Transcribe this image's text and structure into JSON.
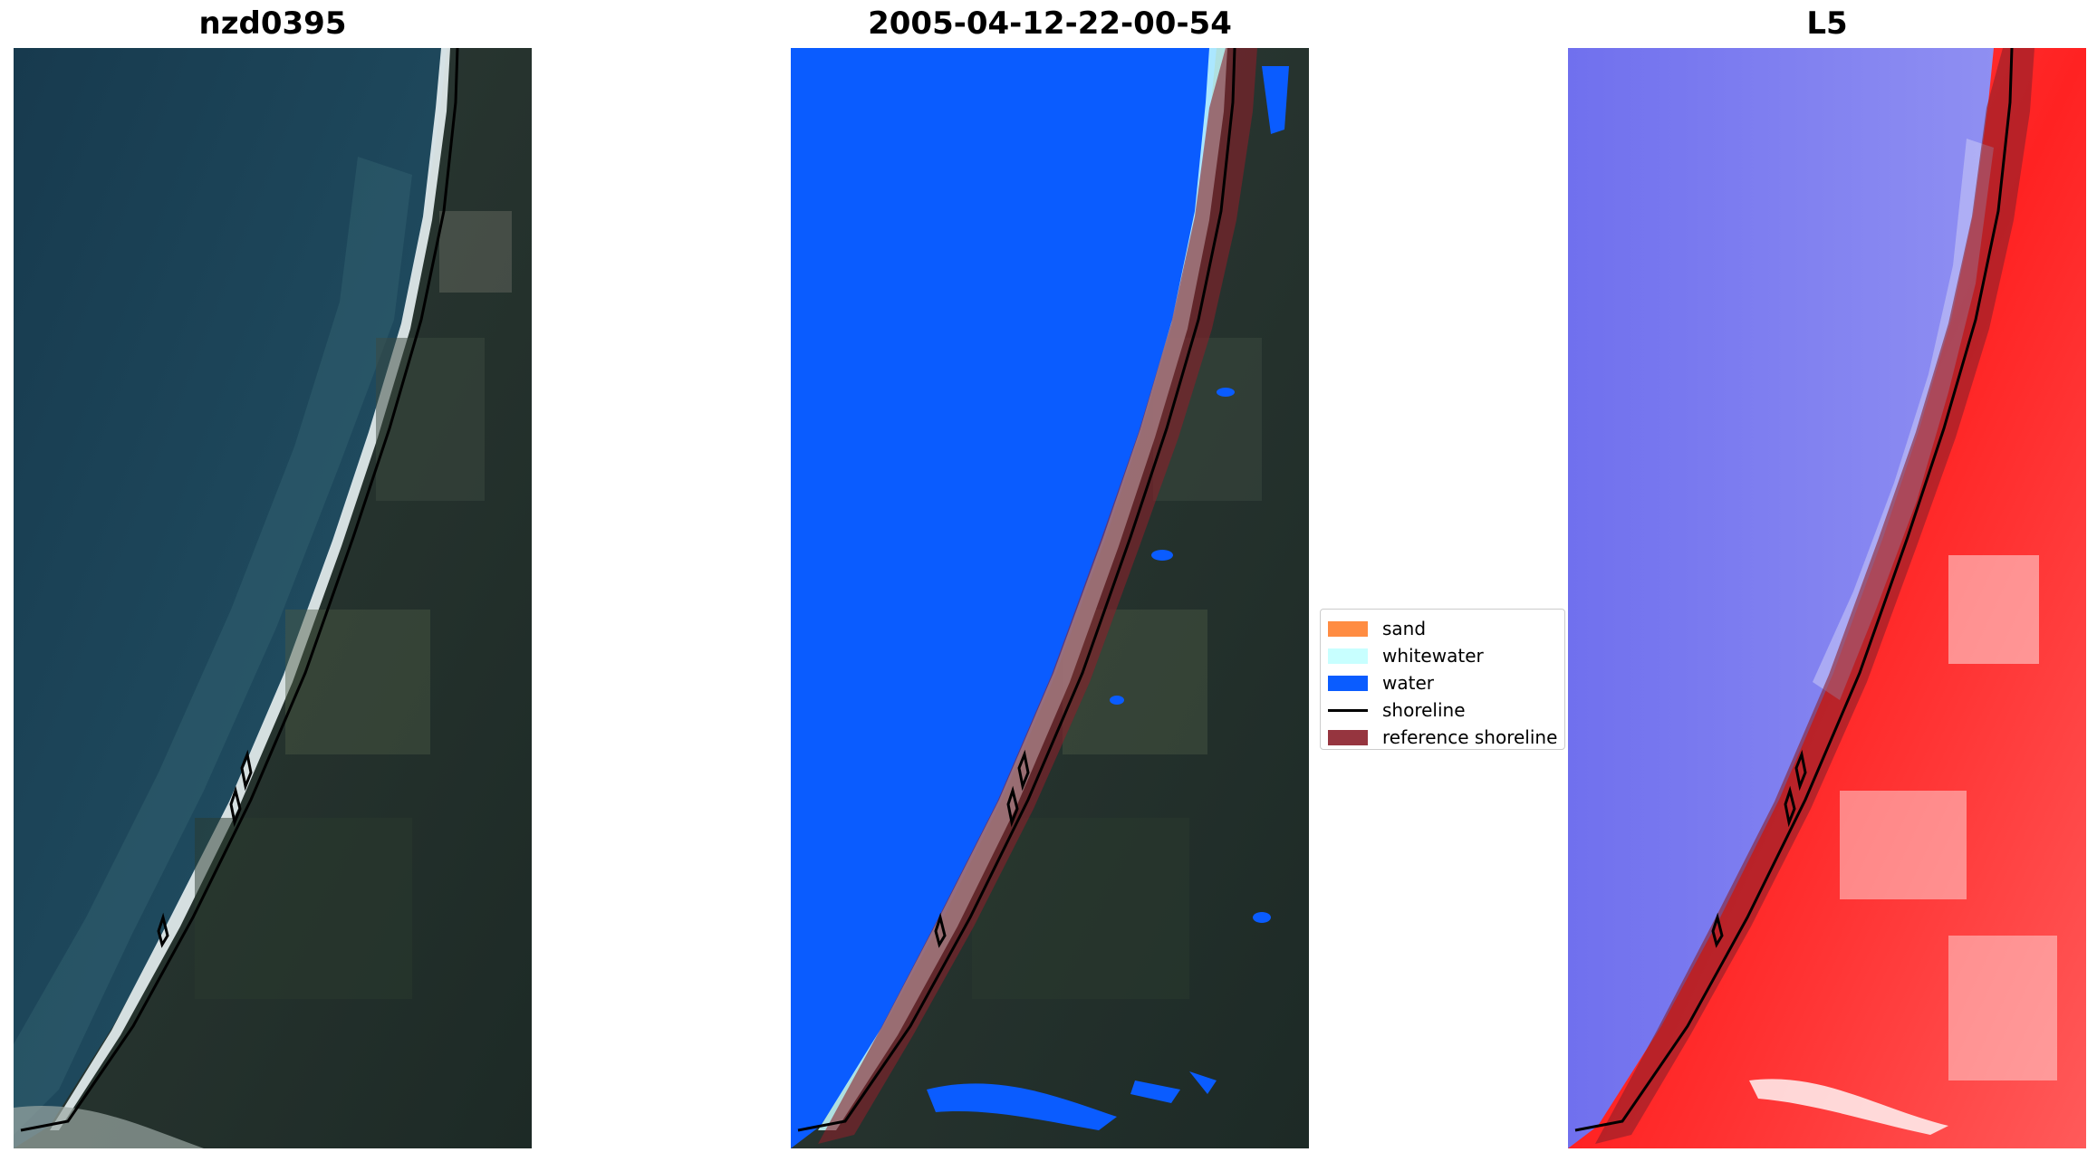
{
  "panels": [
    {
      "title": "nzd0395"
    },
    {
      "title": "2005-04-12-22-00-54"
    },
    {
      "title": "L5"
    }
  ],
  "legend": {
    "items": [
      {
        "label": "sand",
        "color": "#ff8c42"
      },
      {
        "label": "whitewater",
        "color": "#c8ffff"
      },
      {
        "label": "water",
        "color": "#0a5cff"
      },
      {
        "label": "shoreline",
        "color": "#000000"
      },
      {
        "label": "reference shoreline",
        "color": "#8b1f2a"
      }
    ]
  }
}
